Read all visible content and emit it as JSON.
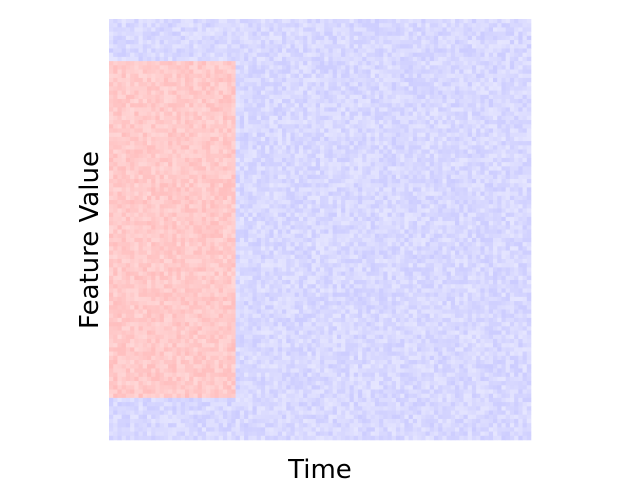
{
  "chart_data": {
    "type": "heatmap",
    "title": "",
    "xlabel": "Time",
    "ylabel": "Feature Value",
    "x_tick_labels": [],
    "y_tick_labels": [],
    "grid_shape": [
      100,
      100
    ],
    "background": {
      "fill_color": "#d9d9ff",
      "value": -0.15
    },
    "region": {
      "x_range": [
        0,
        30
      ],
      "y_range": [
        10,
        90
      ],
      "fill_color": "#ffcaca",
      "value": 0.2
    },
    "noise": "low-amplitude random per-cell variation",
    "colormap": "bwr",
    "colorbar": false,
    "grid": false
  }
}
